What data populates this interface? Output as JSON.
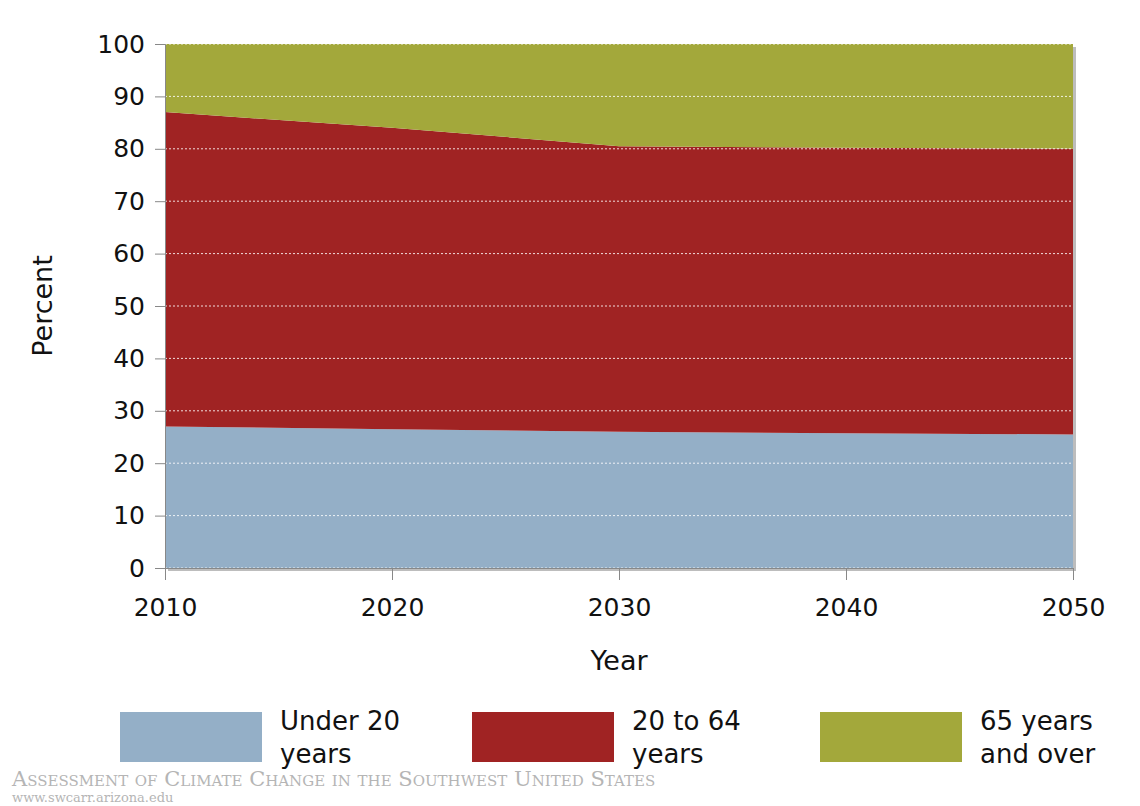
{
  "chart_data": {
    "type": "area",
    "stacked": true,
    "grid": true,
    "legend": "bottom",
    "x_label": "Year",
    "y_label": "Percent",
    "x": [
      2010,
      2020,
      2030,
      2040,
      2050
    ],
    "xlim": [
      2010,
      2050
    ],
    "xticks": [
      2010,
      2020,
      2030,
      2040,
      2050
    ],
    "ylim": [
      0,
      100
    ],
    "yticks": [
      0,
      10,
      20,
      30,
      40,
      50,
      60,
      70,
      80,
      90,
      100
    ],
    "series": [
      {
        "name": "Under 20 years",
        "color": "#94afc7",
        "values": [
          27,
          26.5,
          26,
          25.7,
          25.5
        ]
      },
      {
        "name": "20 to 64 years",
        "color": "#a02323",
        "values": [
          60,
          57.5,
          54.5,
          54.5,
          54.5
        ]
      },
      {
        "name": "65 years and over",
        "color": "#a3a83b",
        "values": [
          13,
          16,
          19.5,
          19.8,
          20
        ]
      }
    ],
    "annotations": [
      "Assessment of Climate Change in the Southwest United States",
      "www.swcarr.arizona.edu"
    ]
  }
}
